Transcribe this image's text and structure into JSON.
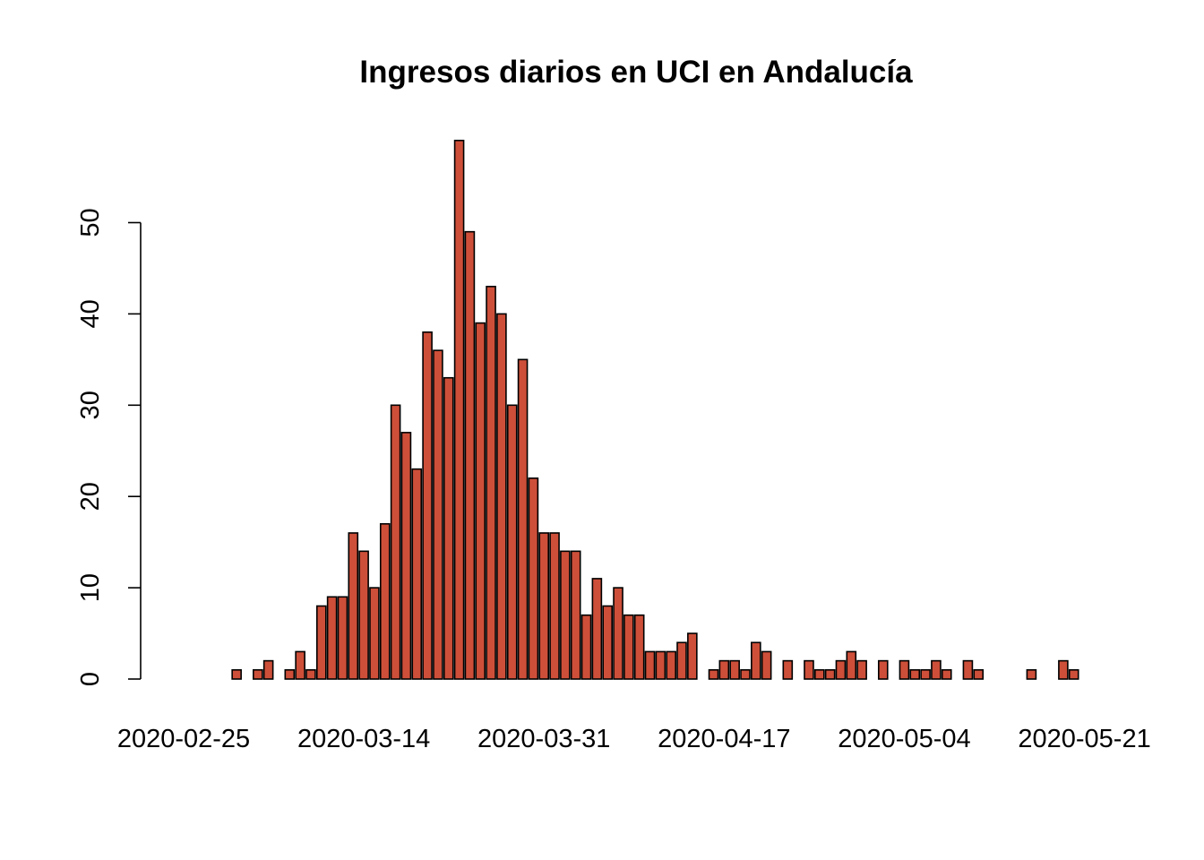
{
  "chart_data": {
    "type": "bar",
    "title": "Ingresos diarios en UCI en Andalucía",
    "xlabel": "",
    "ylabel": "",
    "bar_color": "#CD4F39",
    "start_date": "2020-02-25",
    "x_tick_labels": [
      "2020-02-25",
      "2020-03-14",
      "2020-03-31",
      "2020-04-17",
      "2020-05-04",
      "2020-05-21"
    ],
    "y_ticks": [
      0,
      10,
      20,
      30,
      40,
      50
    ],
    "ylim": [
      0,
      59
    ],
    "grid": false,
    "legend": "none",
    "values": [
      0,
      0,
      0,
      0,
      0,
      1,
      0,
      1,
      2,
      0,
      1,
      3,
      1,
      8,
      9,
      9,
      16,
      14,
      10,
      17,
      30,
      27,
      23,
      38,
      36,
      33,
      59,
      49,
      39,
      43,
      40,
      30,
      35,
      22,
      16,
      16,
      14,
      14,
      7,
      11,
      8,
      10,
      7,
      7,
      3,
      3,
      3,
      4,
      5,
      0,
      1,
      2,
      2,
      1,
      4,
      3,
      0,
      2,
      0,
      2,
      1,
      1,
      2,
      3,
      2,
      0,
      2,
      0,
      2,
      1,
      1,
      2,
      1,
      0,
      2,
      1,
      0,
      0,
      0,
      0,
      1,
      0,
      0,
      2,
      1,
      0,
      0
    ]
  }
}
